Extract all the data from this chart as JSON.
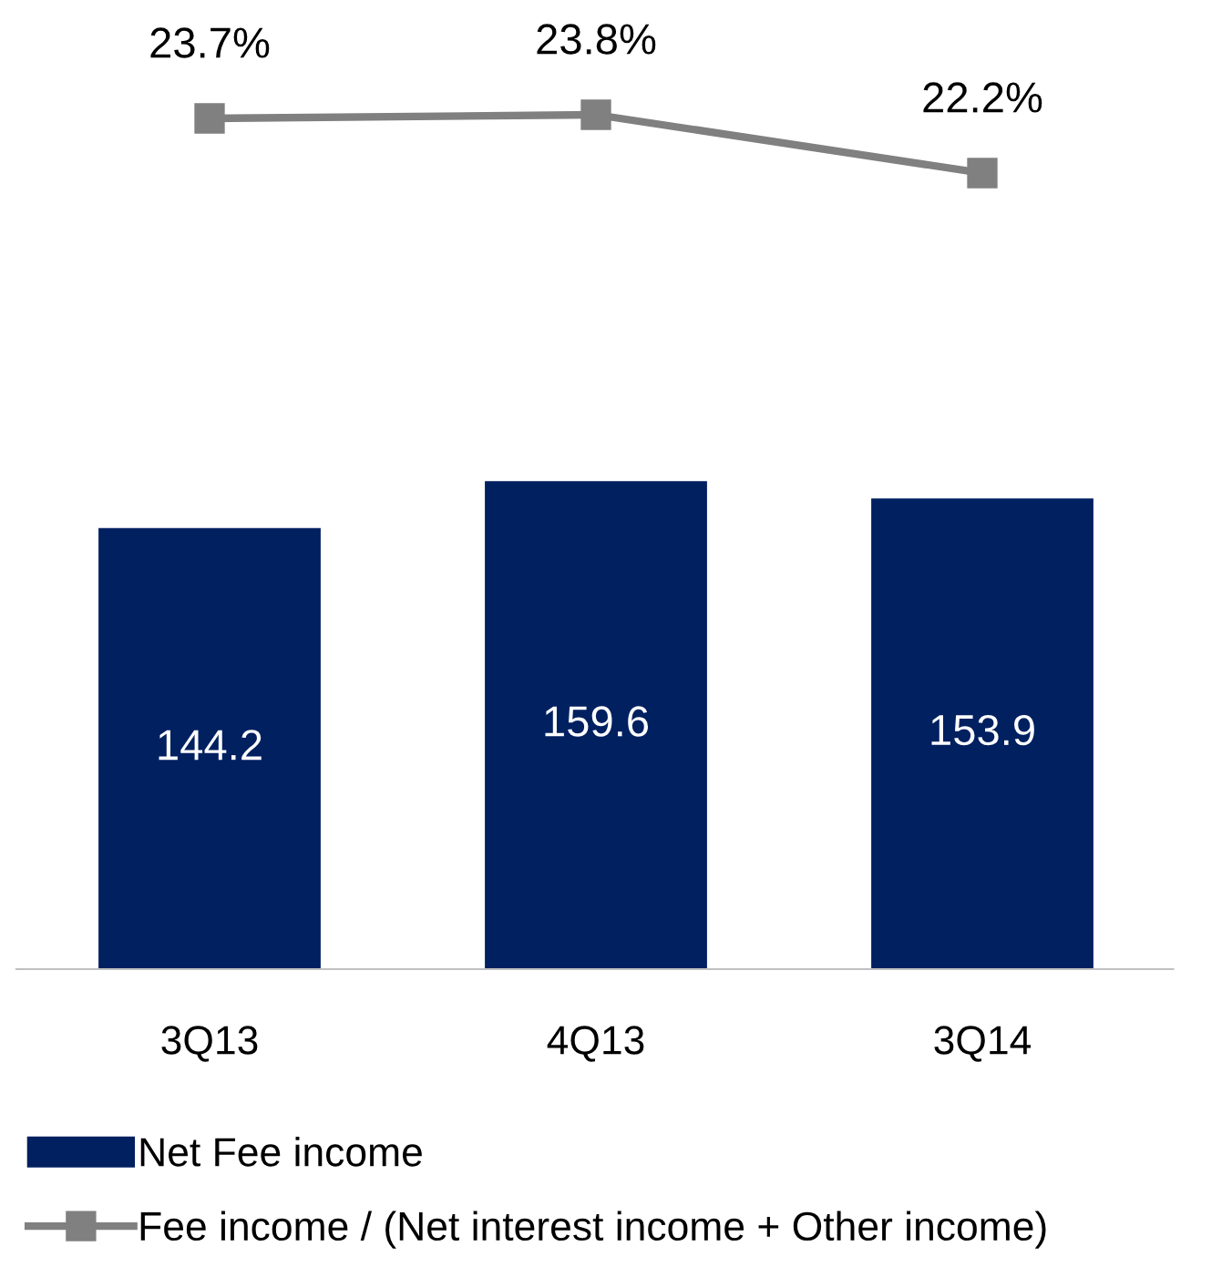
{
  "chart_data": {
    "type": "bar",
    "categories": [
      "3Q13",
      "4Q13",
      "3Q14"
    ],
    "series": [
      {
        "name": "Net Fee income",
        "color": "#002060",
        "values": [
          144.2,
          159.6,
          153.9
        ]
      },
      {
        "name": "Fee income / (Net interest income + Other income)",
        "type": "line",
        "axis": "y2",
        "color": "#808080",
        "marker": "square",
        "values": [
          23.7,
          23.8,
          22.2
        ],
        "value_labels": [
          "23.7%",
          "23.8%",
          "22.2%"
        ]
      }
    ],
    "ylim": [
      0,
      305
    ],
    "y2lim": [
      0.35,
      25.95
    ],
    "data_labels": true,
    "tick_labels": "x",
    "grid": false,
    "legend": "bottom left"
  }
}
